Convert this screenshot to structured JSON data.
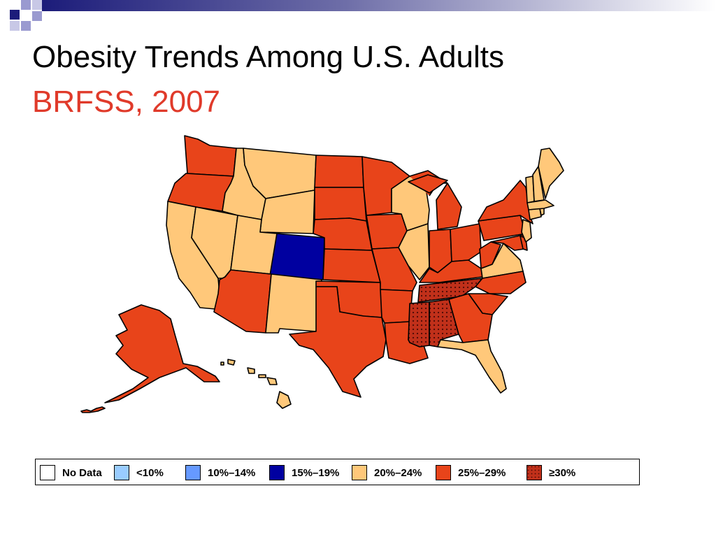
{
  "slide": {
    "title": "Obesity Trends Among U.S. Adults",
    "subtitle": "BRFSS, 2007"
  },
  "colors": {
    "no_data": "#ffffff",
    "under_10": "#99ccff",
    "10_14": "#6699ff",
    "15_19": "#0000a0",
    "20_24": "#ffc87a",
    "25_29": "#e8441a",
    "30_plus": "#b82a14",
    "title_accent": "#e03a2a",
    "state_border": "#000000"
  },
  "legend": [
    {
      "label": "No Data",
      "color_key": "no_data"
    },
    {
      "label": "<10%",
      "color_key": "under_10"
    },
    {
      "label": "10%–14%",
      "color_key": "10_14"
    },
    {
      "label": "15%–19%",
      "color_key": "15_19"
    },
    {
      "label": "20%–24%",
      "color_key": "20_24"
    },
    {
      "label": "25%–29%",
      "color_key": "25_29"
    },
    {
      "label": "≥30%",
      "color_key": "30_plus",
      "pattern": "dotted"
    }
  ],
  "map": {
    "year": "2007",
    "states_by_category": {
      "15_19": [
        "Colorado"
      ],
      "20_24": [
        "Montana",
        "Idaho",
        "Wyoming",
        "Utah",
        "Nevada",
        "California",
        "New Mexico",
        "Wisconsin",
        "Illinois",
        "Virginia",
        "Florida",
        "Maine",
        "New Hampshire",
        "Vermont",
        "Massachusetts",
        "Connecticut",
        "Rhode Island",
        "New Jersey",
        "Hawaii"
      ],
      "25_29": [
        "Washington",
        "Oregon",
        "Arizona",
        "Texas",
        "Oklahoma",
        "Kansas",
        "Nebraska",
        "South Dakota",
        "North Dakota",
        "Minnesota",
        "Iowa",
        "Missouri",
        "Arkansas",
        "Louisiana",
        "Michigan",
        "Indiana",
        "Ohio",
        "Kentucky",
        "West Virginia",
        "Pennsylvania",
        "New York",
        "Maryland",
        "Delaware",
        "North Carolina",
        "South Carolina",
        "Georgia",
        "Alaska"
      ],
      "30_plus": [
        "Tennessee",
        "Mississippi",
        "Alabama"
      ]
    }
  }
}
